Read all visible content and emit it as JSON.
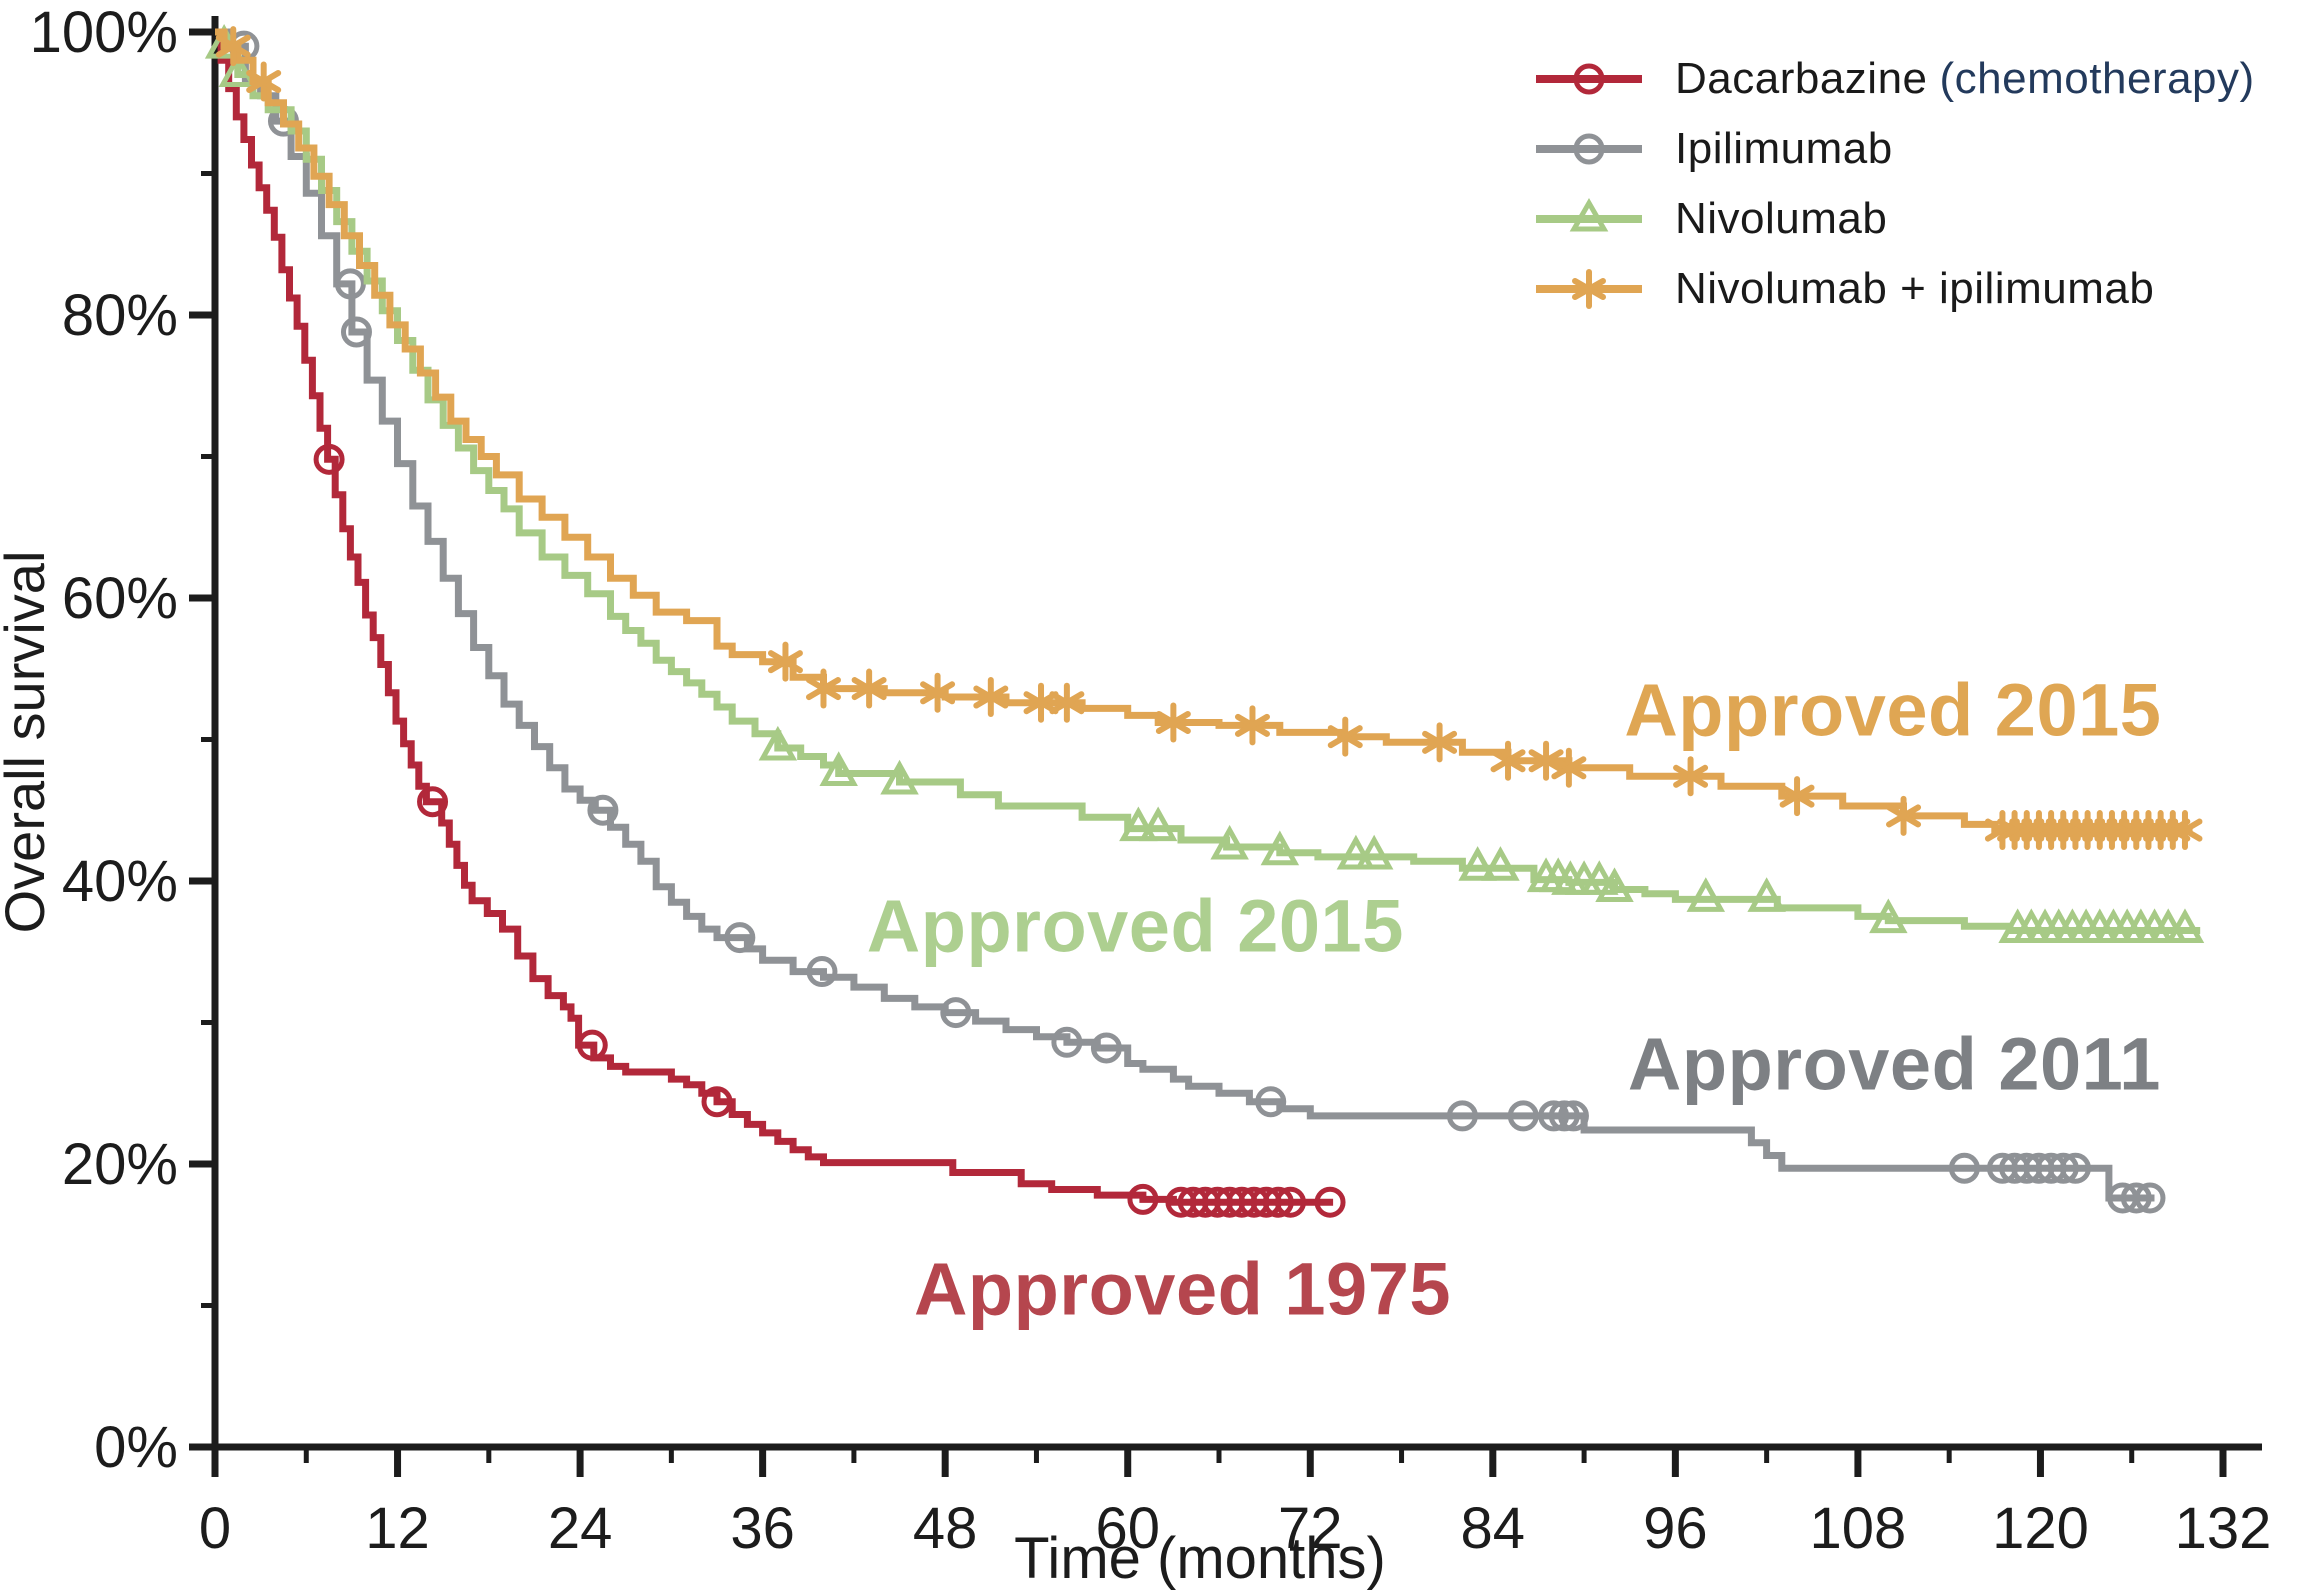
{
  "figure": {
    "y_axis_label": "Overall survival",
    "x_axis_label": "Time (months)"
  },
  "legend": {
    "items": [
      {
        "label": "Dacarbazine",
        "suffix": "(chemotherapy)",
        "suffix_color": "#233a5c",
        "color": "#b2283a",
        "marker": "circle"
      },
      {
        "label": "Ipilimumab",
        "suffix": "",
        "suffix_color": "",
        "color": "#8f9296",
        "marker": "circle"
      },
      {
        "label": "Nivolumab",
        "suffix": "",
        "suffix_color": "",
        "color": "#a7ca86",
        "marker": "triangle"
      },
      {
        "label": "Nivolumab + ipilimumab",
        "suffix": "",
        "suffix_color": "",
        "color": "#e0a553",
        "marker": "asterisk"
      }
    ]
  },
  "annotations": [
    {
      "text": "Approved 2015",
      "color": "#dfa653",
      "month": 110.3,
      "pct": 52.1
    },
    {
      "text": "Approved 2015",
      "color": "#adcf90",
      "month": 60.5,
      "pct": 36.8
    },
    {
      "text": "Approved 2011",
      "color": "#7d8084",
      "month": 110.4,
      "pct": 27.1
    },
    {
      "text": "Approved 1975",
      "color": "#b5464e",
      "month": 63.6,
      "pct": 11.2
    }
  ],
  "chart_data": {
    "type": "line",
    "subtype": "kaplan-meier-step",
    "title": "",
    "xlabel": "Time (months)",
    "ylabel": "Overall survival",
    "axis_color": "#1c1c1c",
    "xlim": [
      0,
      132
    ],
    "ylim": [
      0,
      100
    ],
    "x_major_ticks": [
      0,
      12,
      24,
      36,
      48,
      60,
      72,
      84,
      96,
      108,
      120,
      132
    ],
    "x_minor_ticks": [
      6,
      18,
      30,
      42,
      54,
      66,
      78,
      90,
      102,
      114,
      126
    ],
    "y_major_ticks": [
      0,
      20,
      40,
      60,
      80,
      100
    ],
    "y_minor_ticks": [
      10,
      30,
      50,
      70,
      90
    ],
    "y_tick_suffix": "%",
    "grid": false,
    "legend_position": "top-right",
    "series": [
      {
        "name": "Dacarbazine (chemotherapy)",
        "slug": "dacarbazine",
        "color": "#b2283a",
        "marker": "circle",
        "approval_label": "Approved 1975",
        "points": [
          [
            0,
            100
          ],
          [
            0.4,
            98
          ],
          [
            0.9,
            96
          ],
          [
            1.4,
            94
          ],
          [
            1.9,
            92.4
          ],
          [
            2.4,
            90.6
          ],
          [
            2.9,
            89
          ],
          [
            3.4,
            87.4
          ],
          [
            3.9,
            85.5
          ],
          [
            4.4,
            83.2
          ],
          [
            4.9,
            81.2
          ],
          [
            5.4,
            79.2
          ],
          [
            5.9,
            76.8
          ],
          [
            6.4,
            74.3
          ],
          [
            6.9,
            72
          ],
          [
            7.4,
            69.8
          ],
          [
            7.9,
            67.3
          ],
          [
            8.4,
            64.9
          ],
          [
            8.9,
            62.9
          ],
          [
            9.4,
            61.1
          ],
          [
            9.9,
            58.8
          ],
          [
            10.4,
            57.2
          ],
          [
            10.9,
            55.3
          ],
          [
            11.4,
            53.3
          ],
          [
            11.9,
            51.3
          ],
          [
            12.4,
            49.7
          ],
          [
            12.9,
            48.2
          ],
          [
            13.4,
            46.7
          ],
          [
            13.9,
            45.6
          ],
          [
            14.9,
            44.1
          ],
          [
            15.4,
            42.6
          ],
          [
            15.9,
            41.1
          ],
          [
            16.4,
            39.7
          ],
          [
            16.9,
            38.6
          ],
          [
            17.9,
            37.7
          ],
          [
            18.9,
            36.6
          ],
          [
            19.9,
            34.7
          ],
          [
            20.9,
            33.1
          ],
          [
            21.9,
            31.9
          ],
          [
            22.9,
            31.1
          ],
          [
            23.4,
            30.3
          ],
          [
            23.9,
            28.4
          ],
          [
            24.9,
            27.5
          ],
          [
            26,
            26.9
          ],
          [
            27,
            26.5
          ],
          [
            30,
            26
          ],
          [
            31,
            25.6
          ],
          [
            32,
            25
          ],
          [
            33,
            24.4
          ],
          [
            34,
            23.5
          ],
          [
            35,
            22.8
          ],
          [
            36,
            22.2
          ],
          [
            37,
            21.6
          ],
          [
            38,
            21
          ],
          [
            39,
            20.5
          ],
          [
            40,
            20.1
          ],
          [
            48.5,
            19.4
          ],
          [
            53,
            18.6
          ],
          [
            55,
            18.2
          ],
          [
            58,
            17.8
          ],
          [
            61,
            17.5
          ],
          [
            63,
            17.3
          ],
          [
            73.5,
            17.3
          ]
        ],
        "censor_months": [
          7.5,
          14.3,
          24.8,
          33,
          61,
          63.5,
          64.3,
          65.1,
          65.9,
          66.7,
          67.5,
          68.3,
          69.1,
          69.9,
          70.7,
          73.3
        ]
      },
      {
        "name": "Ipilimumab",
        "slug": "ipilimumab",
        "color": "#8f9296",
        "marker": "circle",
        "approval_label": "Approved 2011",
        "points": [
          [
            0,
            100
          ],
          [
            0.8,
            99
          ],
          [
            2,
            96.5
          ],
          [
            3,
            95.5
          ],
          [
            4,
            93.7
          ],
          [
            5,
            91.2
          ],
          [
            6,
            88.6
          ],
          [
            7,
            85.6
          ],
          [
            8,
            82.2
          ],
          [
            9,
            78.8
          ],
          [
            10,
            75.4
          ],
          [
            11,
            72.5
          ],
          [
            12,
            69.5
          ],
          [
            13,
            66.5
          ],
          [
            14,
            64
          ],
          [
            15,
            61.4
          ],
          [
            16,
            58.9
          ],
          [
            17,
            56.5
          ],
          [
            18,
            54.5
          ],
          [
            19,
            52.5
          ],
          [
            20,
            51
          ],
          [
            21,
            49.5
          ],
          [
            22,
            48
          ],
          [
            23,
            46.5
          ],
          [
            24,
            45.7
          ],
          [
            25,
            45
          ],
          [
            26,
            43.8
          ],
          [
            27,
            42.6
          ],
          [
            28,
            41.4
          ],
          [
            29,
            39.6
          ],
          [
            30,
            38.5
          ],
          [
            31,
            37.5
          ],
          [
            32,
            36.6
          ],
          [
            33,
            36
          ],
          [
            35,
            35.2
          ],
          [
            36,
            34.4
          ],
          [
            38,
            33.6
          ],
          [
            40,
            33.2
          ],
          [
            42,
            32.5
          ],
          [
            44,
            31.7
          ],
          [
            46,
            31.1
          ],
          [
            48,
            30.7
          ],
          [
            50,
            30.1
          ],
          [
            52,
            29.5
          ],
          [
            54,
            29
          ],
          [
            56,
            28.6
          ],
          [
            58,
            28.2
          ],
          [
            60,
            27.1
          ],
          [
            61,
            26.7
          ],
          [
            63,
            26
          ],
          [
            64,
            25.5
          ],
          [
            66,
            25
          ],
          [
            68,
            24.4
          ],
          [
            70,
            23.9
          ],
          [
            72,
            23.4
          ],
          [
            89,
            23.4
          ],
          [
            90,
            22.4
          ],
          [
            100,
            22.4
          ],
          [
            101,
            21.5
          ],
          [
            102,
            20.6
          ],
          [
            103,
            19.7
          ],
          [
            123.5,
            19.7
          ],
          [
            124.5,
            17.6
          ],
          [
            127.5,
            17.6
          ]
        ],
        "censor_months": [
          1.9,
          4.5,
          8.9,
          9.3,
          25.5,
          34.5,
          39.9,
          48.7,
          56,
          58.6,
          69.4,
          82,
          86,
          88,
          88.7,
          89.3,
          115,
          117.5,
          118.3,
          119.1,
          119.9,
          120.7,
          121.5,
          122.3,
          125.4,
          126.3,
          127.2
        ]
      },
      {
        "name": "Nivolumab",
        "slug": "nivolumab",
        "color": "#a7ca86",
        "marker": "triangle",
        "approval_label": "Approved 2015",
        "points": [
          [
            0,
            100
          ],
          [
            0.6,
            99
          ],
          [
            1.5,
            97
          ],
          [
            2.5,
            95.5
          ],
          [
            3.5,
            94.5
          ],
          [
            5,
            93
          ],
          [
            6,
            91
          ],
          [
            7,
            88.8
          ],
          [
            8,
            86.6
          ],
          [
            9,
            84.5
          ],
          [
            10,
            82.4
          ],
          [
            11,
            80.3
          ],
          [
            12,
            78.2
          ],
          [
            13,
            76.1
          ],
          [
            14,
            74
          ],
          [
            15,
            72.2
          ],
          [
            16,
            70.6
          ],
          [
            17,
            69
          ],
          [
            18,
            67.6
          ],
          [
            19,
            66.3
          ],
          [
            20,
            64.6
          ],
          [
            21.5,
            62.9
          ],
          [
            23,
            61.6
          ],
          [
            24.5,
            60.3
          ],
          [
            26,
            58.7
          ],
          [
            27,
            57.7
          ],
          [
            28,
            56.8
          ],
          [
            29,
            55.6
          ],
          [
            30,
            54.8
          ],
          [
            31,
            54
          ],
          [
            32,
            53.2
          ],
          [
            33,
            52.3
          ],
          [
            34,
            51.3
          ],
          [
            35.5,
            50.4
          ],
          [
            37,
            49.4
          ],
          [
            38.5,
            48.8
          ],
          [
            40,
            48.2
          ],
          [
            41,
            47.6
          ],
          [
            45,
            47
          ],
          [
            49,
            46.1
          ],
          [
            51.5,
            45.3
          ],
          [
            57,
            44.5
          ],
          [
            60,
            43.7
          ],
          [
            63.5,
            42.9
          ],
          [
            66.5,
            42.4
          ],
          [
            70,
            42
          ],
          [
            72.5,
            41.7
          ],
          [
            78.8,
            41.4
          ],
          [
            82,
            40.9
          ],
          [
            86.7,
            40.1
          ],
          [
            89,
            39.9
          ],
          [
            92,
            39.4
          ],
          [
            94,
            39.1
          ],
          [
            96,
            38.7
          ],
          [
            102.7,
            38.1
          ],
          [
            108,
            37.5
          ],
          [
            110,
            37.2
          ],
          [
            115,
            36.8
          ],
          [
            118,
            36.5
          ],
          [
            130.5,
            36.5
          ]
        ],
        "censor_months": [
          0.6,
          1.5,
          37,
          41,
          45,
          60.7,
          62,
          66.7,
          70,
          75,
          76.2,
          83,
          84.5,
          87.5,
          88.3,
          89.1,
          90,
          91,
          92,
          98,
          102,
          110,
          118.5,
          119.4,
          120.3,
          121.2,
          122.1,
          123,
          123.9,
          124.8,
          125.7,
          126.6,
          127.5,
          128.4,
          129.5
        ]
      },
      {
        "name": "Nivolumab + ipilimumab",
        "slug": "nivolumab-ipilimumab",
        "color": "#e0a553",
        "marker": "asterisk",
        "approval_label": "Approved 2015",
        "points": [
          [
            0,
            100
          ],
          [
            0.6,
            99
          ],
          [
            1.5,
            98
          ],
          [
            2.5,
            96.5
          ],
          [
            3.5,
            95
          ],
          [
            4.5,
            93.5
          ],
          [
            5.5,
            91.8
          ],
          [
            6.5,
            89.8
          ],
          [
            7.5,
            87.8
          ],
          [
            8.5,
            85.6
          ],
          [
            9.5,
            83.5
          ],
          [
            10.5,
            81.4
          ],
          [
            11.5,
            79.3
          ],
          [
            12.5,
            77.6
          ],
          [
            13.5,
            75.9
          ],
          [
            14.5,
            74.2
          ],
          [
            15.5,
            72.5
          ],
          [
            16.5,
            71.2
          ],
          [
            17.5,
            70
          ],
          [
            18.5,
            68.7
          ],
          [
            20,
            67
          ],
          [
            21.5,
            65.7
          ],
          [
            23,
            64.3
          ],
          [
            24.5,
            62.9
          ],
          [
            26,
            61.4
          ],
          [
            27.5,
            60.2
          ],
          [
            29,
            59
          ],
          [
            31,
            58.4
          ],
          [
            33,
            56.6
          ],
          [
            34,
            56
          ],
          [
            36,
            55.5
          ],
          [
            38,
            54.4
          ],
          [
            40,
            53.6
          ],
          [
            44,
            53.3
          ],
          [
            48,
            53
          ],
          [
            52,
            52.6
          ],
          [
            57,
            52.2
          ],
          [
            60,
            51.7
          ],
          [
            62,
            51.2
          ],
          [
            66,
            51
          ],
          [
            70,
            50.5
          ],
          [
            74,
            50.2
          ],
          [
            77,
            49.8
          ],
          [
            82,
            49.1
          ],
          [
            85,
            48.5
          ],
          [
            89,
            48
          ],
          [
            93,
            47.4
          ],
          [
            99,
            46.7
          ],
          [
            103,
            46
          ],
          [
            107,
            45.3
          ],
          [
            111,
            44.6
          ],
          [
            115,
            44
          ],
          [
            117,
            43.6
          ],
          [
            130,
            43.6
          ]
        ],
        "censor_months": [
          1.2,
          3.2,
          37.5,
          40,
          43,
          47.5,
          51,
          54.3,
          56,
          63,
          68.2,
          74.3,
          80.5,
          85,
          87.5,
          89,
          97,
          104,
          111,
          117.5,
          118.3,
          119.1,
          119.9,
          120.7,
          121.5,
          122.3,
          123.1,
          123.9,
          124.7,
          125.5,
          126.3,
          127.1,
          127.9,
          128.7,
          129.5
        ]
      }
    ]
  }
}
